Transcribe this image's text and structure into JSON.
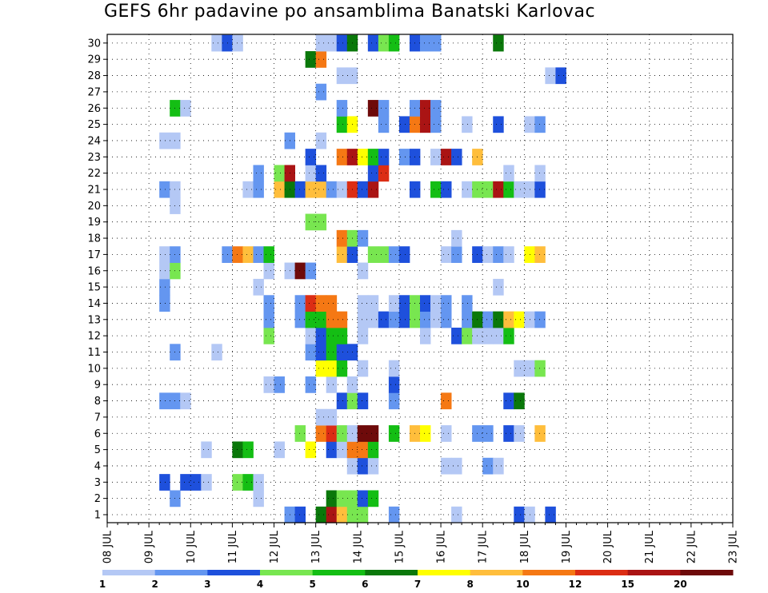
{
  "title": "GEFS 6hr padavine po ansamblima Banatski Karlovac",
  "chart_data": {
    "type": "heatmap",
    "title": "GEFS 6hr padavine po ansamblima Banatski Karlovac",
    "x_tick_labels": [
      "08 JUL",
      "09 JUL",
      "10 JUL",
      "11 JUL",
      "12 JUL",
      "13 JUL",
      "14 JUL",
      "15 JUL",
      "16 JUL",
      "17 JUL",
      "18 JUL",
      "19 JUL",
      "20 JUL",
      "21 JUL",
      "22 JUL",
      "23 JUL"
    ],
    "x_start": "08 JUL 00Z",
    "x_step_hours": 6,
    "y_tick_labels": [
      "1",
      "2",
      "3",
      "4",
      "5",
      "6",
      "7",
      "8",
      "9",
      "10",
      "11",
      "12",
      "13",
      "14",
      "15",
      "16",
      "17",
      "18",
      "19",
      "20",
      "21",
      "22",
      "23",
      "24",
      "25",
      "26",
      "27",
      "28",
      "29",
      "30"
    ],
    "colorbar": {
      "levels": [
        1,
        2,
        3,
        4,
        5,
        6,
        7,
        8,
        10,
        12,
        15,
        20
      ],
      "labels": [
        "1",
        "2",
        "3",
        "4",
        "5",
        "6",
        "7",
        "8",
        "10",
        "12",
        "15",
        "20"
      ],
      "colors": [
        "#b4c8f5",
        "#6496f0",
        "#1e50dc",
        "#78e650",
        "#14be14",
        "#0a780a",
        "#ffff00",
        "#ffbe3c",
        "#f57814",
        "#dc2d14",
        "#aa1414",
        "#6e0a0a"
      ]
    },
    "cells": [
      [
        1,
        17,
        2
      ],
      [
        1,
        18,
        3
      ],
      [
        1,
        20,
        6
      ],
      [
        1,
        21,
        11
      ],
      [
        1,
        22,
        8
      ],
      [
        1,
        23,
        4
      ],
      [
        1,
        24,
        4
      ],
      [
        1,
        27,
        2
      ],
      [
        1,
        33,
        1
      ],
      [
        1,
        39,
        3
      ],
      [
        1,
        40,
        1
      ],
      [
        1,
        42,
        3
      ],
      [
        2,
        6,
        2
      ],
      [
        2,
        14,
        1
      ],
      [
        2,
        21,
        6
      ],
      [
        2,
        22,
        4
      ],
      [
        2,
        23,
        4
      ],
      [
        2,
        24,
        3
      ],
      [
        2,
        25,
        5
      ],
      [
        3,
        5,
        3
      ],
      [
        3,
        7,
        3
      ],
      [
        3,
        8,
        3
      ],
      [
        3,
        9,
        1
      ],
      [
        3,
        12,
        4
      ],
      [
        3,
        13,
        5
      ],
      [
        3,
        14,
        1
      ],
      [
        4,
        23,
        1
      ],
      [
        4,
        24,
        3
      ],
      [
        4,
        25,
        1
      ],
      [
        4,
        32,
        1
      ],
      [
        4,
        33,
        1
      ],
      [
        4,
        36,
        2
      ],
      [
        4,
        37,
        1
      ],
      [
        5,
        9,
        1
      ],
      [
        5,
        12,
        6
      ],
      [
        5,
        13,
        5
      ],
      [
        5,
        16,
        1
      ],
      [
        5,
        19,
        7
      ],
      [
        5,
        21,
        3
      ],
      [
        5,
        22,
        1
      ],
      [
        5,
        23,
        9
      ],
      [
        5,
        24,
        9
      ],
      [
        5,
        25,
        5
      ],
      [
        6,
        18,
        4
      ],
      [
        6,
        20,
        9
      ],
      [
        6,
        21,
        10
      ],
      [
        6,
        22,
        4
      ],
      [
        6,
        23,
        1
      ],
      [
        6,
        24,
        12
      ],
      [
        6,
        25,
        12
      ],
      [
        6,
        27,
        5
      ],
      [
        6,
        29,
        8
      ],
      [
        6,
        30,
        7
      ],
      [
        6,
        32,
        1
      ],
      [
        6,
        35,
        2
      ],
      [
        6,
        36,
        2
      ],
      [
        6,
        38,
        3
      ],
      [
        6,
        39,
        1
      ],
      [
        6,
        41,
        8
      ],
      [
        7,
        20,
        1
      ],
      [
        7,
        21,
        1
      ],
      [
        8,
        5,
        2
      ],
      [
        8,
        6,
        2
      ],
      [
        8,
        7,
        1
      ],
      [
        8,
        22,
        3
      ],
      [
        8,
        23,
        4
      ],
      [
        8,
        24,
        3
      ],
      [
        8,
        27,
        2
      ],
      [
        8,
        32,
        9
      ],
      [
        8,
        38,
        3
      ],
      [
        8,
        39,
        6
      ],
      [
        9,
        15,
        1
      ],
      [
        9,
        16,
        2
      ],
      [
        9,
        19,
        2
      ],
      [
        9,
        21,
        1
      ],
      [
        9,
        23,
        1
      ],
      [
        9,
        27,
        3
      ],
      [
        10,
        20,
        7
      ],
      [
        10,
        21,
        7
      ],
      [
        10,
        22,
        5
      ],
      [
        10,
        24,
        1
      ],
      [
        10,
        27,
        1
      ],
      [
        10,
        39,
        1
      ],
      [
        10,
        40,
        1
      ],
      [
        10,
        41,
        4
      ],
      [
        11,
        6,
        2
      ],
      [
        11,
        10,
        1
      ],
      [
        11,
        19,
        2
      ],
      [
        11,
        20,
        3
      ],
      [
        11,
        21,
        5
      ],
      [
        11,
        22,
        3
      ],
      [
        11,
        23,
        3
      ],
      [
        12,
        15,
        4
      ],
      [
        12,
        19,
        1
      ],
      [
        12,
        20,
        3
      ],
      [
        12,
        21,
        5
      ],
      [
        12,
        22,
        5
      ],
      [
        12,
        24,
        1
      ],
      [
        12,
        30,
        1
      ],
      [
        12,
        33,
        3
      ],
      [
        12,
        34,
        4
      ],
      [
        12,
        35,
        1
      ],
      [
        12,
        36,
        1
      ],
      [
        12,
        37,
        1
      ],
      [
        12,
        38,
        5
      ],
      [
        13,
        15,
        2
      ],
      [
        13,
        18,
        2
      ],
      [
        13,
        19,
        5
      ],
      [
        13,
        20,
        5
      ],
      [
        13,
        21,
        9
      ],
      [
        13,
        22,
        9
      ],
      [
        13,
        24,
        1
      ],
      [
        13,
        25,
        1
      ],
      [
        13,
        26,
        3
      ],
      [
        13,
        27,
        2
      ],
      [
        13,
        28,
        3
      ],
      [
        13,
        29,
        4
      ],
      [
        13,
        30,
        2
      ],
      [
        13,
        31,
        1
      ],
      [
        13,
        32,
        2
      ],
      [
        13,
        34,
        2
      ],
      [
        13,
        35,
        6
      ],
      [
        13,
        36,
        2
      ],
      [
        13,
        37,
        6
      ],
      [
        13,
        38,
        8
      ],
      [
        13,
        39,
        7
      ],
      [
        13,
        40,
        1
      ],
      [
        13,
        41,
        2
      ],
      [
        14,
        5,
        2
      ],
      [
        14,
        15,
        2
      ],
      [
        14,
        18,
        2
      ],
      [
        14,
        19,
        10
      ],
      [
        14,
        20,
        9
      ],
      [
        14,
        21,
        9
      ],
      [
        14,
        24,
        1
      ],
      [
        14,
        25,
        1
      ],
      [
        14,
        27,
        1
      ],
      [
        14,
        28,
        3
      ],
      [
        14,
        29,
        4
      ],
      [
        14,
        30,
        3
      ],
      [
        14,
        31,
        1
      ],
      [
        14,
        32,
        2
      ],
      [
        14,
        34,
        2
      ],
      [
        15,
        5,
        2
      ],
      [
        15,
        14,
        1
      ],
      [
        15,
        37,
        1
      ],
      [
        16,
        5,
        1
      ],
      [
        16,
        6,
        4
      ],
      [
        16,
        15,
        1
      ],
      [
        16,
        17,
        1
      ],
      [
        16,
        18,
        12
      ],
      [
        16,
        19,
        2
      ],
      [
        16,
        24,
        1
      ],
      [
        17,
        5,
        1
      ],
      [
        17,
        6,
        2
      ],
      [
        17,
        11,
        2
      ],
      [
        17,
        12,
        9
      ],
      [
        17,
        13,
        8
      ],
      [
        17,
        14,
        2
      ],
      [
        17,
        15,
        5
      ],
      [
        17,
        22,
        8
      ],
      [
        17,
        23,
        3
      ],
      [
        17,
        25,
        4
      ],
      [
        17,
        26,
        4
      ],
      [
        17,
        27,
        2
      ],
      [
        17,
        28,
        3
      ],
      [
        17,
        32,
        1
      ],
      [
        17,
        33,
        2
      ],
      [
        17,
        35,
        3
      ],
      [
        17,
        36,
        1
      ],
      [
        17,
        37,
        2
      ],
      [
        17,
        38,
        1
      ],
      [
        17,
        40,
        7
      ],
      [
        17,
        41,
        8
      ],
      [
        18,
        22,
        9
      ],
      [
        18,
        23,
        4
      ],
      [
        18,
        24,
        2
      ],
      [
        18,
        33,
        1
      ],
      [
        19,
        19,
        4
      ],
      [
        19,
        20,
        4
      ],
      [
        20,
        6,
        1
      ],
      [
        21,
        5,
        2
      ],
      [
        21,
        6,
        1
      ],
      [
        21,
        13,
        1
      ],
      [
        21,
        14,
        2
      ],
      [
        21,
        16,
        8
      ],
      [
        21,
        17,
        6
      ],
      [
        21,
        18,
        3
      ],
      [
        21,
        19,
        8
      ],
      [
        21,
        20,
        8
      ],
      [
        21,
        21,
        2
      ],
      [
        21,
        22,
        1
      ],
      [
        21,
        23,
        10
      ],
      [
        21,
        24,
        3
      ],
      [
        21,
        25,
        11
      ],
      [
        21,
        29,
        3
      ],
      [
        21,
        31,
        5
      ],
      [
        21,
        32,
        3
      ],
      [
        21,
        34,
        1
      ],
      [
        21,
        35,
        4
      ],
      [
        21,
        36,
        4
      ],
      [
        21,
        37,
        11
      ],
      [
        21,
        38,
        5
      ],
      [
        21,
        39,
        1
      ],
      [
        21,
        40,
        1
      ],
      [
        21,
        41,
        3
      ],
      [
        22,
        14,
        2
      ],
      [
        22,
        16,
        4
      ],
      [
        22,
        17,
        11
      ],
      [
        22,
        19,
        1
      ],
      [
        22,
        20,
        3
      ],
      [
        22,
        25,
        3
      ],
      [
        22,
        26,
        10
      ],
      [
        22,
        38,
        1
      ],
      [
        22,
        41,
        1
      ],
      [
        23,
        19,
        3
      ],
      [
        23,
        22,
        9
      ],
      [
        23,
        23,
        11
      ],
      [
        23,
        24,
        7
      ],
      [
        23,
        25,
        5
      ],
      [
        23,
        26,
        3
      ],
      [
        23,
        28,
        2
      ],
      [
        23,
        29,
        3
      ],
      [
        23,
        31,
        1
      ],
      [
        23,
        32,
        11
      ],
      [
        23,
        33,
        3
      ],
      [
        23,
        35,
        8
      ],
      [
        24,
        5,
        1
      ],
      [
        24,
        6,
        1
      ],
      [
        24,
        17,
        2
      ],
      [
        24,
        20,
        1
      ],
      [
        25,
        22,
        5
      ],
      [
        25,
        23,
        7
      ],
      [
        25,
        26,
        2
      ],
      [
        25,
        28,
        3
      ],
      [
        25,
        29,
        9
      ],
      [
        25,
        30,
        11
      ],
      [
        25,
        31,
        2
      ],
      [
        25,
        34,
        1
      ],
      [
        25,
        37,
        3
      ],
      [
        25,
        40,
        1
      ],
      [
        25,
        41,
        2
      ],
      [
        26,
        6,
        5
      ],
      [
        26,
        7,
        1
      ],
      [
        26,
        22,
        2
      ],
      [
        26,
        25,
        12
      ],
      [
        26,
        26,
        2
      ],
      [
        26,
        29,
        2
      ],
      [
        26,
        30,
        11
      ],
      [
        26,
        31,
        2
      ],
      [
        27,
        20,
        2
      ],
      [
        28,
        22,
        1
      ],
      [
        28,
        23,
        1
      ],
      [
        28,
        42,
        1
      ],
      [
        28,
        43,
        3
      ],
      [
        29,
        19,
        6
      ],
      [
        29,
        20,
        9
      ],
      [
        30,
        10,
        1
      ],
      [
        30,
        11,
        3
      ],
      [
        30,
        12,
        1
      ],
      [
        30,
        20,
        1
      ],
      [
        30,
        21,
        1
      ],
      [
        30,
        22,
        3
      ],
      [
        30,
        23,
        6
      ],
      [
        30,
        25,
        3
      ],
      [
        30,
        26,
        4
      ],
      [
        30,
        27,
        5
      ],
      [
        30,
        29,
        3
      ],
      [
        30,
        30,
        2
      ],
      [
        30,
        31,
        2
      ],
      [
        30,
        37,
        6
      ]
    ]
  }
}
